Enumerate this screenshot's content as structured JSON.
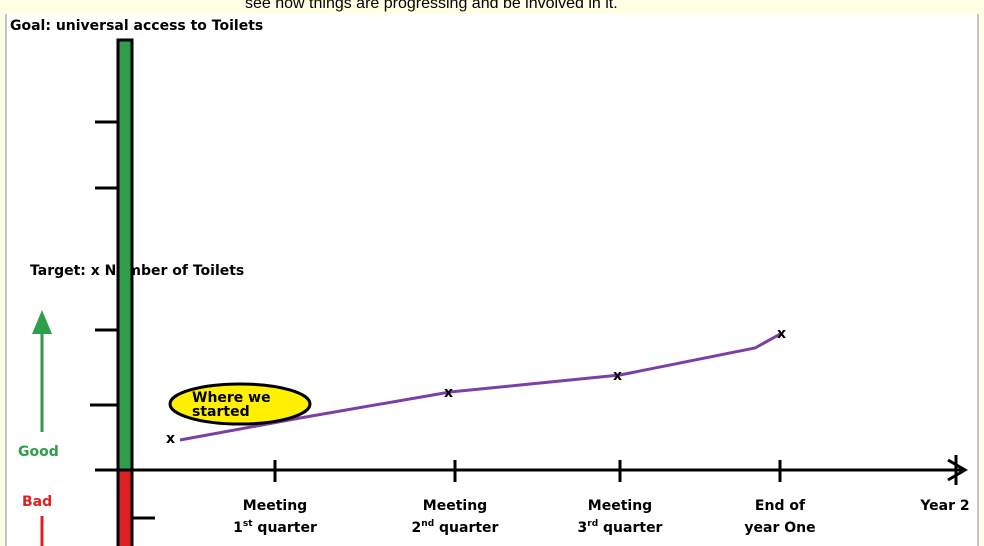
{
  "banner": "see how things are progressing and be involved in it.",
  "goal": "Goal: universal access to Toilets",
  "target": "Target: x Number of Toilets",
  "good": "Good",
  "bad": "Bad",
  "start_note": {
    "line1": "Where we",
    "line2": "started"
  },
  "marker": "x",
  "milestones": [
    {
      "line1": "Meeting",
      "ordinal": "1",
      "suffix": "st",
      "line2": "quarter"
    },
    {
      "line1": "Meeting",
      "ordinal": "2",
      "suffix": "nd",
      "line2": "quarter"
    },
    {
      "line1": "Meeting",
      "ordinal": "3",
      "suffix": "rd",
      "line2": "quarter"
    },
    {
      "line1": "End of",
      "line2": "year One"
    },
    {
      "line1": "Year 2"
    }
  ]
}
